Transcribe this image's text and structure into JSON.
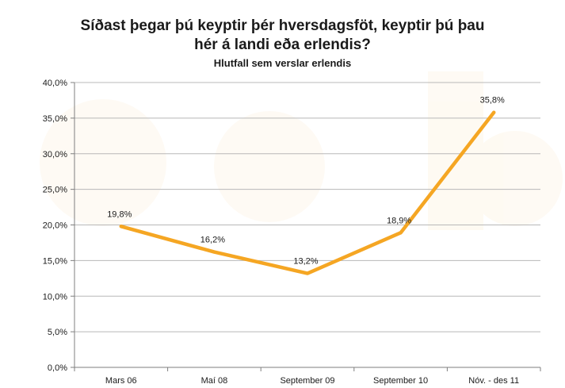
{
  "chart_data": {
    "type": "line",
    "title_lines": [
      "Síðast þegar þú keyptir þér hversdagsföt, keyptir þú þau",
      "hér á landi eða erlendis?"
    ],
    "subtitle": "Hlutfall sem verslar erlendis",
    "categories": [
      "Mars 06",
      "Maí 08",
      "September 09",
      "September 10",
      "Nóv. - des 11"
    ],
    "values": [
      19.8,
      16.2,
      13.2,
      18.9,
      35.8
    ],
    "value_labels": [
      "19,8%",
      "16,2%",
      "13,2%",
      "18,9%",
      "35,8%"
    ],
    "ylim": [
      0,
      40
    ],
    "y_ticks": [
      0,
      5,
      10,
      15,
      20,
      25,
      30,
      35,
      40
    ],
    "y_tick_labels": [
      "0,0%",
      "5,0%",
      "10,0%",
      "15,0%",
      "20,0%",
      "25,0%",
      "30,0%",
      "35,0%",
      "40,0%"
    ],
    "grid": true,
    "legend": "none",
    "colors": {
      "line": "#f5a623",
      "grid": "#b8b8b8",
      "axis": "#7f7f7f",
      "text": "#1a1a1a"
    }
  }
}
